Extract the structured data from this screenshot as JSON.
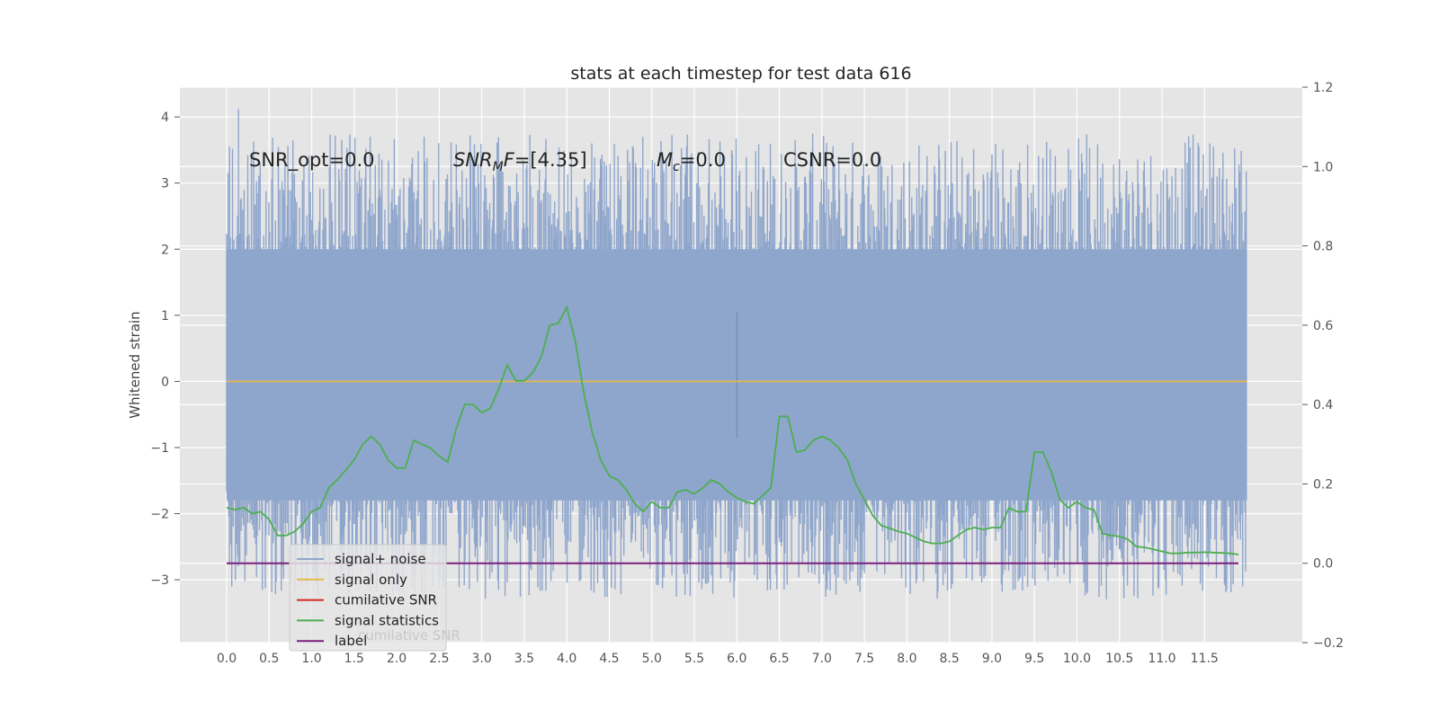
{
  "chart_data": {
    "type": "line",
    "title": "stats at each timestep for test data 616",
    "ylabel": "Whitened strain",
    "xlim": [
      -0.55,
      12.65
    ],
    "ylim": [
      -3.95,
      4.45
    ],
    "y2lim": [
      -0.2,
      1.2
    ],
    "xticks": [
      0.0,
      0.5,
      1.0,
      1.5,
      2.0,
      2.5,
      3.0,
      3.5,
      4.0,
      4.5,
      5.0,
      5.5,
      6.0,
      6.5,
      7.0,
      7.5,
      8.0,
      8.5,
      9.0,
      9.5,
      10.0,
      10.5,
      11.0,
      11.5
    ],
    "xtick_labels": [
      "0.0",
      "0.5",
      "1.0",
      "1.5",
      "2.0",
      "2.5",
      "3.0",
      "3.5",
      "4.0",
      "4.5",
      "5.0",
      "5.5",
      "6.0",
      "6.5",
      "7.0",
      "7.5",
      "8.0",
      "8.5",
      "9.0",
      "9.5",
      "10.0",
      "10.5",
      "11.0",
      "11.5"
    ],
    "yticks": [
      -3,
      -2,
      -1,
      0,
      1,
      2,
      3,
      4
    ],
    "ytick_labels": [
      "−3",
      "−2",
      "−1",
      "0",
      "1",
      "2",
      "3",
      "4"
    ],
    "y2ticks": [
      -0.2,
      0.0,
      0.2,
      0.4,
      0.6,
      0.8,
      1.0,
      1.2
    ],
    "y2tick_labels": [
      "−0.2",
      "0.0",
      "0.2",
      "0.4",
      "0.6",
      "0.8",
      "1.0",
      "1.2"
    ],
    "grid": true,
    "legend_position": "lower-left",
    "annotations": {
      "snr_opt": "SNR_opt=0.0",
      "snr_mf_sub": "M",
      "snr_mf_rest": "F=[4.35]",
      "mc_sub": "c",
      "mc_rest": "=0.0",
      "csnr": "CSNR=0.0"
    },
    "noise_band": {
      "x_range": [
        0.0,
        12.0
      ],
      "dense_range": [
        -1.8,
        2.0
      ],
      "max": 4.12,
      "min": -3.5
    },
    "series": [
      {
        "name": "signal+ noise",
        "axis": "left",
        "color": "#8fa6cc"
      },
      {
        "name": "signal only",
        "axis": "left",
        "color": "#e8b84a",
        "x": [
          0.0,
          12.0
        ],
        "y": [
          0.0,
          0.0
        ]
      },
      {
        "name": "cumilative SNR",
        "axis": "right",
        "color": "#d62728",
        "x": [],
        "y": []
      },
      {
        "name": "signal statistics",
        "axis": "right",
        "color": "#4caf50",
        "x": [
          0.0,
          0.1,
          0.2,
          0.3,
          0.4,
          0.5,
          0.6,
          0.7,
          0.8,
          0.9,
          1.0,
          1.1,
          1.2,
          1.3,
          1.4,
          1.5,
          1.6,
          1.7,
          1.8,
          1.9,
          2.0,
          2.1,
          2.2,
          2.3,
          2.4,
          2.5,
          2.6,
          2.7,
          2.8,
          2.9,
          3.0,
          3.1,
          3.2,
          3.3,
          3.4,
          3.5,
          3.6,
          3.7,
          3.8,
          3.9,
          4.0,
          4.1,
          4.2,
          4.3,
          4.4,
          4.5,
          4.6,
          4.7,
          4.8,
          4.9,
          5.0,
          5.1,
          5.2,
          5.3,
          5.4,
          5.5,
          5.6,
          5.7,
          5.8,
          5.9,
          6.0,
          6.1,
          6.2,
          6.3,
          6.4,
          6.5,
          6.6,
          6.7,
          6.8,
          6.9,
          7.0,
          7.1,
          7.2,
          7.3,
          7.4,
          7.5,
          7.6,
          7.7,
          7.8,
          7.9,
          8.0,
          8.1,
          8.2,
          8.3,
          8.4,
          8.5,
          8.6,
          8.7,
          8.8,
          8.9,
          9.0,
          9.1,
          9.2,
          9.3,
          9.4,
          9.5,
          9.6,
          9.7,
          9.8,
          9.9,
          10.0,
          10.1,
          10.2,
          10.3,
          10.4,
          10.5,
          10.6,
          10.7,
          10.8,
          10.9,
          11.0,
          11.1,
          11.2,
          11.3,
          11.4,
          11.5,
          11.6,
          11.7,
          11.8,
          11.9
        ],
        "y": [
          0.14,
          0.135,
          0.14,
          0.125,
          0.13,
          0.11,
          0.07,
          0.07,
          0.08,
          0.1,
          0.13,
          0.14,
          0.19,
          0.21,
          0.235,
          0.26,
          0.3,
          0.32,
          0.3,
          0.26,
          0.24,
          0.24,
          0.31,
          0.3,
          0.29,
          0.27,
          0.255,
          0.34,
          0.4,
          0.4,
          0.38,
          0.39,
          0.44,
          0.5,
          0.46,
          0.46,
          0.48,
          0.52,
          0.6,
          0.605,
          0.645,
          0.56,
          0.43,
          0.33,
          0.26,
          0.22,
          0.21,
          0.185,
          0.15,
          0.13,
          0.155,
          0.14,
          0.14,
          0.18,
          0.185,
          0.175,
          0.19,
          0.21,
          0.2,
          0.18,
          0.165,
          0.155,
          0.15,
          0.17,
          0.19,
          0.37,
          0.37,
          0.28,
          0.285,
          0.31,
          0.32,
          0.31,
          0.29,
          0.26,
          0.2,
          0.16,
          0.12,
          0.095,
          0.088,
          0.08,
          0.075,
          0.065,
          0.055,
          0.05,
          0.05,
          0.055,
          0.07,
          0.085,
          0.09,
          0.085,
          0.09,
          0.09,
          0.14,
          0.13,
          0.13,
          0.28,
          0.28,
          0.23,
          0.16,
          0.14,
          0.155,
          0.14,
          0.135,
          0.075,
          0.07,
          0.068,
          0.06,
          0.042,
          0.04,
          0.035,
          0.03,
          0.025,
          0.025,
          0.027,
          0.027,
          0.028,
          0.027,
          0.026,
          0.025,
          0.022
        ]
      },
      {
        "name": "label",
        "axis": "right",
        "color": "#7b1f7e",
        "x": [
          0.0,
          11.9
        ],
        "y": [
          0.0,
          0.0
        ]
      }
    ],
    "hidden_legend_text": "cumilative SNR"
  }
}
